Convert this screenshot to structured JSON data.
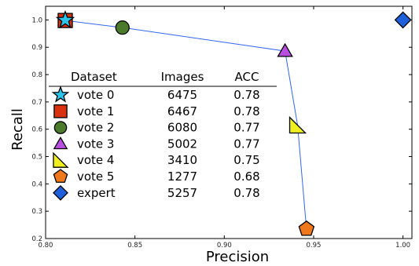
{
  "chart_data": {
    "type": "scatter",
    "title": "",
    "xlabel": "Precision",
    "ylabel": "Recall",
    "xlim": [
      0.8,
      1.005
    ],
    "ylim": [
      0.2,
      1.05
    ],
    "x_ticks": [
      0.8,
      0.85,
      0.9,
      0.95,
      1.0
    ],
    "x_tick_labels": [
      "0.80",
      "0.85",
      "0.90",
      "0.95",
      "1.00"
    ],
    "y_ticks": [
      0.2,
      0.3,
      0.4,
      0.5,
      0.6,
      0.7,
      0.8,
      0.9,
      1.0
    ],
    "y_tick_labels": [
      "0.2",
      "0.3",
      "0.4",
      "0.5",
      "0.6",
      "0.7",
      "0.8",
      "0.9",
      "1.0"
    ],
    "grid": false,
    "connecting_line_color": "#3366ee",
    "series": [
      {
        "name": "vote 0",
        "x": 0.811,
        "y": 0.999,
        "marker": "star",
        "color": "#2ec3ea"
      },
      {
        "name": "vote 1",
        "x": 0.811,
        "y": 0.998,
        "marker": "square",
        "color": "#d8320f"
      },
      {
        "name": "vote 2",
        "x": 0.843,
        "y": 0.972,
        "marker": "circle",
        "color": "#4b7a2a"
      },
      {
        "name": "vote 3",
        "x": 0.934,
        "y": 0.886,
        "marker": "triangle-up",
        "color": "#b84fe0"
      },
      {
        "name": "vote 4",
        "x": 0.941,
        "y": 0.615,
        "marker": "triangle-left",
        "color": "#f0f020"
      },
      {
        "name": "vote 5",
        "x": 0.946,
        "y": 0.235,
        "marker": "pentagon",
        "color": "#f0781c"
      },
      {
        "name": "expert",
        "x": 1.0,
        "y": 1.0,
        "marker": "diamond",
        "color": "#1f5fd9"
      }
    ],
    "line_order": [
      "vote 1",
      "vote 2",
      "vote 3",
      "vote 4",
      "vote 5"
    ],
    "table": {
      "headers": [
        "Dataset",
        "Images",
        "ACC"
      ],
      "rows": [
        {
          "dataset": "vote 0",
          "images": "6475",
          "acc": "0.78"
        },
        {
          "dataset": "vote 1",
          "images": "6467",
          "acc": "0.78"
        },
        {
          "dataset": "vote 2",
          "images": "6080",
          "acc": "0.77"
        },
        {
          "dataset": "vote 3",
          "images": "5002",
          "acc": "0.77"
        },
        {
          "dataset": "vote 4",
          "images": "3410",
          "acc": "0.75"
        },
        {
          "dataset": "vote 5",
          "images": "1277",
          "acc": "0.68"
        },
        {
          "dataset": "expert",
          "images": "5257",
          "acc": "0.78"
        }
      ]
    }
  }
}
